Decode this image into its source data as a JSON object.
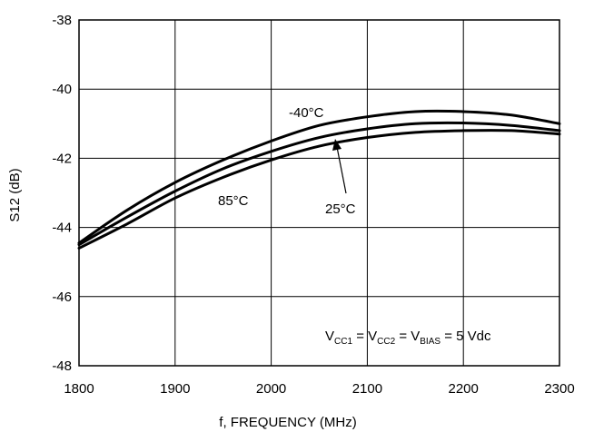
{
  "chart_data": {
    "type": "line",
    "xlabel": "f, FREQUENCY (MHz)",
    "ylabel": "S12 (dB)",
    "xlim": [
      1800,
      2300
    ],
    "ylim": [
      -48,
      -38
    ],
    "x_ticks": [
      "1800",
      "1900",
      "2000",
      "2100",
      "2200",
      "2300"
    ],
    "y_ticks": [
      "-48",
      "-46",
      "-44",
      "-42",
      "-40",
      "-38"
    ],
    "grid": true,
    "series": [
      {
        "name": "-40°C",
        "x": [
          1800,
          1850,
          1900,
          1950,
          2000,
          2050,
          2100,
          2150,
          2200,
          2250,
          2300
        ],
        "y": [
          -44.45,
          -43.5,
          -42.7,
          -42.05,
          -41.5,
          -41.05,
          -40.8,
          -40.65,
          -40.65,
          -40.75,
          -41.0
        ]
      },
      {
        "name": "25°C",
        "x": [
          1800,
          1850,
          1900,
          1950,
          2000,
          2050,
          2100,
          2150,
          2200,
          2250,
          2300
        ],
        "y": [
          -44.5,
          -43.7,
          -42.95,
          -42.3,
          -41.8,
          -41.4,
          -41.15,
          -41.0,
          -40.98,
          -41.05,
          -41.2
        ]
      },
      {
        "name": "85°C",
        "x": [
          1800,
          1850,
          1900,
          1950,
          2000,
          2050,
          2100,
          2150,
          2200,
          2250,
          2300
        ],
        "y": [
          -44.6,
          -43.9,
          -43.15,
          -42.55,
          -42.05,
          -41.65,
          -41.4,
          -41.25,
          -41.2,
          -41.2,
          -41.3
        ]
      }
    ],
    "annotations": {
      "label_m40": "-40°C",
      "label_25": "25°C",
      "label_85": "85°C",
      "condition": {
        "v1": "V",
        "s1": "CC1",
        "eq1": " = V",
        "s2": "CC2",
        "eq2": " = V",
        "s3": "BIAS",
        "tail": " = 5 Vdc"
      }
    },
    "line_color": "#000000"
  }
}
